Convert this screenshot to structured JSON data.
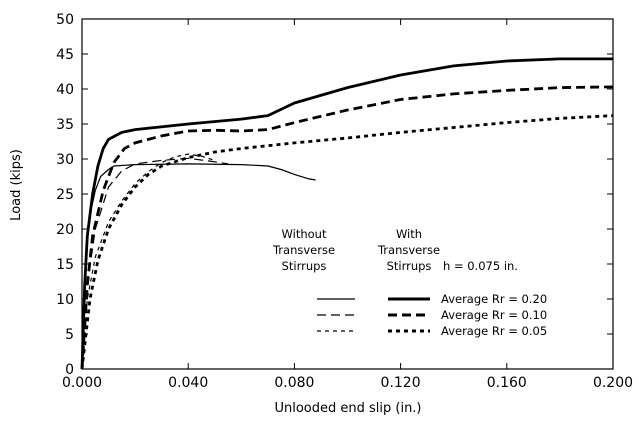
{
  "chart_data": {
    "type": "line",
    "xlabel": "Unlooded end slip (in.)",
    "ylabel": "Load (kips)",
    "xlim": [
      0,
      0.2
    ],
    "ylim": [
      0,
      50
    ],
    "xticks": [
      0,
      0.04,
      0.08,
      0.12,
      0.16,
      0.2
    ],
    "xtick_labels": [
      "0.000",
      "0.040",
      "0.080",
      "0.120",
      "0.160",
      "0.200"
    ],
    "yticks": [
      0,
      5,
      10,
      15,
      20,
      25,
      30,
      35,
      40,
      45,
      50
    ],
    "ytick_labels": [
      "0",
      "5",
      "10",
      "15",
      "20",
      "25",
      "30",
      "35",
      "40",
      "45",
      "50"
    ],
    "grid": false,
    "series": [
      {
        "group": "without",
        "style": "solid",
        "weight": "thin",
        "x": [
          0,
          0.001,
          0.002,
          0.003,
          0.005,
          0.007,
          0.01,
          0.012,
          0.02,
          0.04,
          0.06,
          0.07,
          0.075,
          0.08,
          0.085,
          0.088
        ],
        "y": [
          0,
          12,
          18,
          22,
          25.5,
          27.5,
          28.5,
          29,
          29.2,
          29.3,
          29.2,
          29,
          28.5,
          27.8,
          27.2,
          27
        ]
      },
      {
        "group": "without",
        "style": "dash",
        "weight": "thin",
        "x": [
          0,
          0.002,
          0.005,
          0.01,
          0.015,
          0.02,
          0.03,
          0.04,
          0.05,
          0.055
        ],
        "y": [
          0,
          12,
          20,
          26,
          28.3,
          29.3,
          29.8,
          30.1,
          29.6,
          29.3
        ]
      },
      {
        "group": "without",
        "style": "dot",
        "weight": "thin",
        "x": [
          0,
          0.002,
          0.005,
          0.01,
          0.015,
          0.02,
          0.025,
          0.03,
          0.035,
          0.04,
          0.045,
          0.05
        ],
        "y": [
          0,
          10,
          16,
          21,
          24,
          26.5,
          28.2,
          29.5,
          30.3,
          30.7,
          30.4,
          29.8
        ]
      },
      {
        "group": "with",
        "style": "solid",
        "weight": "thick",
        "x": [
          0,
          0.001,
          0.002,
          0.004,
          0.006,
          0.008,
          0.01,
          0.015,
          0.02,
          0.04,
          0.06,
          0.07,
          0.08,
          0.1,
          0.12,
          0.14,
          0.16,
          0.18,
          0.2
        ],
        "y": [
          0,
          12,
          19,
          25,
          29,
          31.5,
          32.8,
          33.8,
          34.2,
          35,
          35.7,
          36.2,
          38,
          40.2,
          42,
          43.3,
          44,
          44.3,
          44.3
        ]
      },
      {
        "group": "with",
        "style": "dash",
        "weight": "thick",
        "x": [
          0,
          0.002,
          0.004,
          0.008,
          0.012,
          0.016,
          0.02,
          0.03,
          0.04,
          0.05,
          0.06,
          0.07,
          0.08,
          0.1,
          0.12,
          0.14,
          0.16,
          0.18,
          0.2
        ],
        "y": [
          0,
          12,
          19,
          25.5,
          29.5,
          31.5,
          32.3,
          33.3,
          34,
          34.1,
          34,
          34.2,
          35.2,
          37,
          38.5,
          39.3,
          39.8,
          40.2,
          40.3
        ]
      },
      {
        "group": "with",
        "style": "dot",
        "weight": "thick",
        "x": [
          0,
          0.003,
          0.006,
          0.01,
          0.015,
          0.02,
          0.025,
          0.03,
          0.04,
          0.05,
          0.06,
          0.08,
          0.1,
          0.12,
          0.14,
          0.16,
          0.18,
          0.2
        ],
        "y": [
          0,
          10,
          15.5,
          20,
          23.5,
          26,
          27.8,
          29,
          30.2,
          31,
          31.5,
          32.3,
          33,
          33.8,
          34.5,
          35.2,
          35.8,
          36.2
        ]
      }
    ],
    "legend": {
      "placement": "center-right",
      "col1_header": [
        "Without",
        "Transverse",
        "Stirrups"
      ],
      "col2_header": [
        "With",
        "Transverse",
        "Stirrups"
      ],
      "param": "h = 0.075 in.",
      "entries": [
        "Average Rr = 0.20",
        "Average Rr = 0.10",
        "Average Rr = 0.05"
      ]
    }
  }
}
